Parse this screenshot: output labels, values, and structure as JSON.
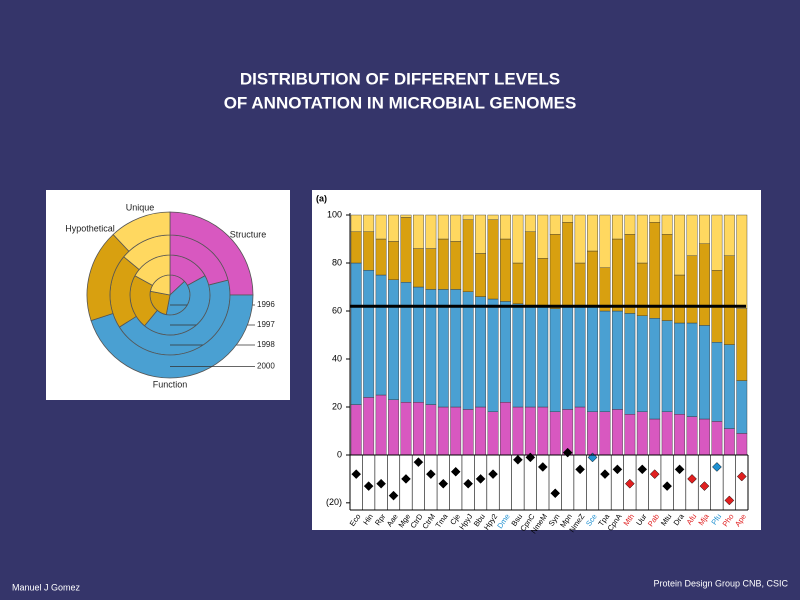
{
  "title": [
    "DISTRIBUTION OF DIFFERENT LEVELS",
    "OF ANNOTATION IN MICROBIAL GENOMES"
  ],
  "footer_left": "Manuel  J Gomez",
  "footer_right": "Protein Design Group CNB, CSIC",
  "chart_data": [
    {
      "type": "sunburst",
      "categories": [
        "Structure",
        "Function",
        "Hypothetical",
        "Unique"
      ],
      "colors": [
        "#d858c0",
        "#4aa0d2",
        "#d8a010",
        "#ffd860"
      ],
      "rings": [
        {
          "name": "1996",
          "values": [
            13,
            40,
            25,
            22
          ]
        },
        {
          "name": "1997",
          "values": [
            17,
            44,
            22,
            17
          ]
        },
        {
          "name": "1998",
          "values": [
            21,
            45,
            20,
            14
          ]
        },
        {
          "name": "2000",
          "values": [
            25,
            45,
            18,
            12
          ]
        }
      ]
    },
    {
      "type": "stacked_bar",
      "label": "(a)",
      "categories": [
        "Eco",
        "Hin",
        "Rpr",
        "Aae",
        "Mge",
        "CtrD",
        "CtrM",
        "Tma",
        "Cje",
        "HpyJ",
        "Bbu",
        "Hpy2",
        "Dme",
        "Bsu",
        "CpnC",
        "NmeM",
        "Syn",
        "Mpn",
        "NmeZ",
        "Sce",
        "Tpa",
        "CpnA",
        "Mth",
        "Uur",
        "Pab",
        "Mtu",
        "Dra",
        "Afu",
        "Mja",
        "Pfu",
        "Pho",
        "Ape"
      ],
      "label_colors": [
        "#000000",
        "#000000",
        "#000000",
        "#000000",
        "#000000",
        "#000000",
        "#000000",
        "#000000",
        "#000000",
        "#000000",
        "#000000",
        "#000000",
        "#2090d0",
        "#000000",
        "#000000",
        "#000000",
        "#000000",
        "#000000",
        "#000000",
        "#2090d0",
        "#000000",
        "#000000",
        "#e02020",
        "#000000",
        "#e02020",
        "#000000",
        "#000000",
        "#e02020",
        "#e02020",
        "#2090d0",
        "#e02020",
        "#e02020"
      ],
      "series": [
        {
          "color": "#d858c0",
          "values": [
            21,
            24,
            25,
            23,
            22,
            22,
            21,
            20,
            20,
            19,
            20,
            18,
            22,
            20,
            20,
            20,
            18,
            19,
            20,
            18,
            18,
            19,
            17,
            18,
            15,
            18,
            17,
            16,
            15,
            14,
            11,
            9
          ]
        },
        {
          "color": "#4aa0d2",
          "values": [
            59,
            53,
            50,
            50,
            50,
            48,
            48,
            49,
            49,
            49,
            46,
            47,
            42,
            43,
            42,
            42,
            43,
            43,
            42,
            44,
            42,
            41,
            42,
            40,
            42,
            38,
            38,
            39,
            39,
            33,
            35,
            22
          ]
        },
        {
          "color": "#d8a010",
          "values": [
            13,
            16,
            15,
            16,
            27,
            16,
            17,
            21,
            20,
            30,
            18,
            33,
            26,
            17,
            31,
            20,
            31,
            35,
            18,
            23,
            18,
            30,
            33,
            22,
            40,
            36,
            20,
            28,
            34,
            30,
            37,
            30
          ]
        },
        {
          "color": "#ffd860",
          "values": [
            7,
            7,
            10,
            11,
            1,
            14,
            14,
            10,
            11,
            2,
            16,
            2,
            10,
            20,
            7,
            18,
            8,
            3,
            20,
            15,
            22,
            10,
            8,
            20,
            3,
            8,
            25,
            17,
            12,
            23,
            17,
            39
          ]
        }
      ],
      "ylim": [
        0,
        100
      ],
      "yticks": [
        0,
        20,
        40,
        60,
        80,
        100
      ],
      "reference_line": 62,
      "diamonds": {
        "values": [
          -8,
          -13,
          -12,
          -17,
          -10,
          -3,
          -8,
          -12,
          -7,
          -12,
          -10,
          -8,
          null,
          -2,
          -1,
          -5,
          -16,
          1,
          -6,
          -1,
          -8,
          -6,
          -12,
          -6,
          -8,
          -13,
          -6,
          -10,
          -13,
          -5,
          -19,
          -9
        ],
        "ylim": [
          -23,
          0
        ],
        "yticks": [
          0,
          {
            "value": -20,
            "label": "(20)"
          }
        ]
      }
    }
  ]
}
